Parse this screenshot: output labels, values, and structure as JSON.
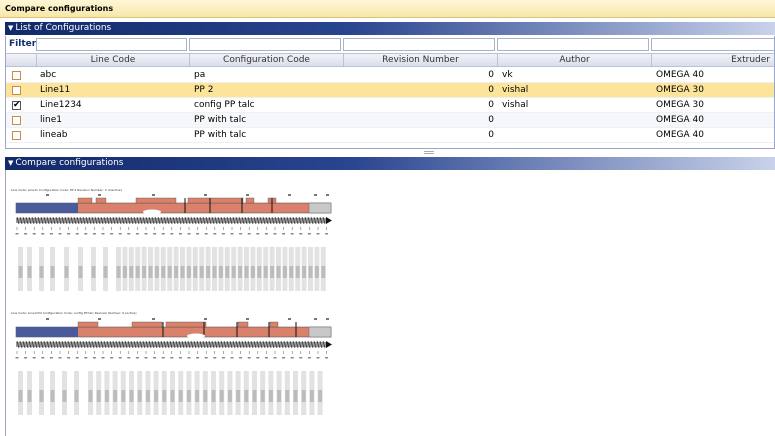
{
  "app": {
    "title": "Compare configurations"
  },
  "list_panel": {
    "title": "List of Configurations",
    "filter_label": "Filter",
    "columns": [
      "Line Code",
      "Configuration Code",
      "Revision Number",
      "Author",
      "Extruder"
    ],
    "rows": [
      {
        "checked": false,
        "line_code": "abc",
        "configuration_code": "pa",
        "revision": "0",
        "author": "vk",
        "extruder": "OMEGA 40",
        "selected": false
      },
      {
        "checked": false,
        "line_code": "Line11",
        "configuration_code": "PP 2",
        "revision": "0",
        "author": "vishal",
        "extruder": "OMEGA 30",
        "selected": true
      },
      {
        "checked": true,
        "line_code": "Line1234",
        "configuration_code": "config PP talc",
        "revision": "0",
        "author": "vishal",
        "extruder": "OMEGA 30",
        "selected": false
      },
      {
        "checked": false,
        "line_code": "line1",
        "configuration_code": "PP with talc",
        "revision": "0",
        "author": "",
        "extruder": "OMEGA 40",
        "selected": false
      },
      {
        "checked": false,
        "line_code": "lineab",
        "configuration_code": "PP with talc",
        "revision": "0",
        "author": "",
        "extruder": "OMEGA 40",
        "selected": false
      }
    ]
  },
  "compare_panel": {
    "title": "Compare configurations",
    "configs": [
      {
        "label": "Line Code: Line11  Configuration Code: PP 2  Revision Number: 0 (inactive)"
      },
      {
        "label": "Line Code: Line1234  Configuration Code: config PP talc  Revision Number: 0 (active)"
      }
    ]
  },
  "colors": {
    "header_blue": "#1b3576",
    "selected_row": "#fce59a",
    "barrel_blue": "#4a5a9a",
    "barrel_red": "#d9816a",
    "barrel_grey": "#c8c8c8"
  }
}
